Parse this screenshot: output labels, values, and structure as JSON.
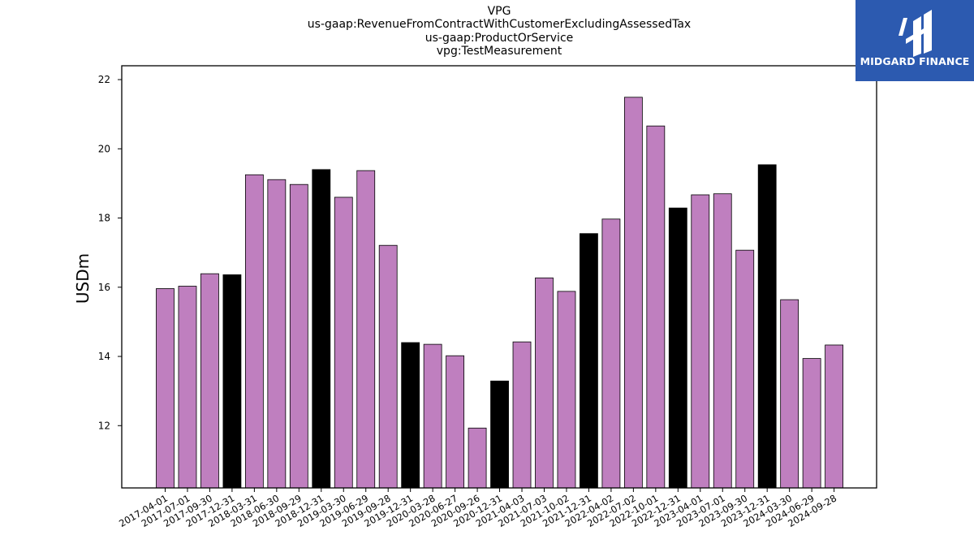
{
  "chart_data": {
    "type": "bar",
    "title_lines": [
      "VPG",
      "us-gaap:RevenueFromContractWithCustomerExcludingAssessedTax",
      "us-gaap:ProductOrService",
      "vpg:TestMeasurement"
    ],
    "ylabel": "USDm",
    "ylim": [
      10.2,
      22.4
    ],
    "yticks": [
      12,
      14,
      16,
      18,
      20,
      22
    ],
    "colors": {
      "regular": "#bf7fbf",
      "year_end": "#000000",
      "edge": "#000000"
    },
    "categories": [
      "2017-04-01",
      "2017-07-01",
      "2017-09-30",
      "2017-12-31",
      "2018-03-31",
      "2018-06-30",
      "2018-09-29",
      "2018-12-31",
      "2019-03-30",
      "2019-06-29",
      "2019-09-28",
      "2019-12-31",
      "2020-03-28",
      "2020-06-27",
      "2020-09-26",
      "2020-12-31",
      "2021-04-03",
      "2021-07-03",
      "2021-10-02",
      "2021-12-31",
      "2022-04-02",
      "2022-07-02",
      "2022-10-01",
      "2022-12-31",
      "2023-04-01",
      "2023-07-01",
      "2023-09-30",
      "2023-12-31",
      "2024-03-30",
      "2024-06-29",
      "2024-09-28"
    ],
    "values": [
      15.96,
      16.03,
      16.39,
      16.36,
      19.25,
      19.11,
      18.97,
      19.4,
      18.6,
      19.37,
      17.21,
      14.4,
      14.35,
      14.02,
      11.93,
      13.29,
      14.42,
      16.27,
      15.88,
      17.55,
      17.97,
      21.49,
      20.66,
      18.29,
      18.67,
      18.7,
      17.07,
      19.54,
      15.64,
      13.94,
      14.33
    ],
    "year_end": [
      false,
      false,
      false,
      true,
      false,
      false,
      false,
      true,
      false,
      false,
      false,
      true,
      false,
      false,
      false,
      true,
      false,
      false,
      false,
      true,
      false,
      false,
      false,
      true,
      false,
      false,
      false,
      true,
      false,
      false,
      false
    ]
  },
  "logo": {
    "text": "MIDGARD FINANCE",
    "color": "#2c5ab0"
  }
}
